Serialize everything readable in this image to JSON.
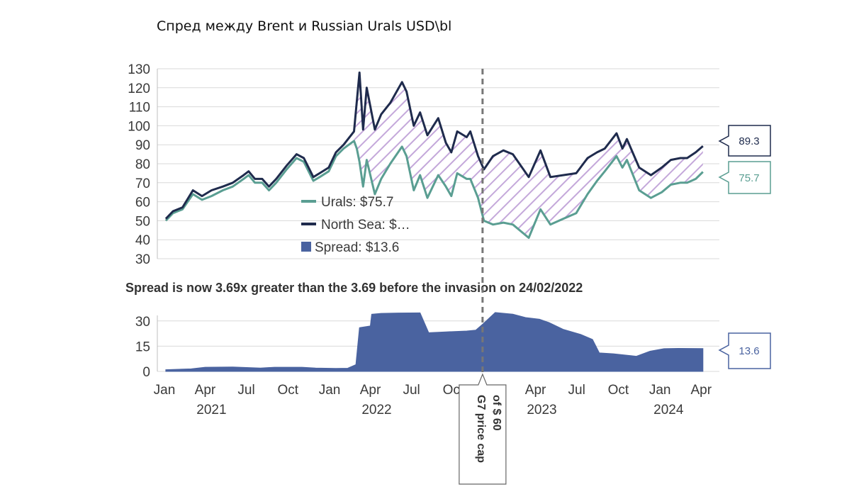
{
  "page": {
    "title": "Спред между Brent и Russian Urals USD\\bl"
  },
  "chart_data": [
    {
      "type": "line",
      "title": "",
      "xlabel": "",
      "ylabel": "",
      "ylim": [
        30,
        130
      ],
      "yticks": [
        130,
        120,
        110,
        100,
        90,
        80,
        70,
        60,
        50,
        40,
        30
      ],
      "x_range": [
        "2021-01-01",
        "2024-04-10"
      ],
      "grid": true,
      "x_tick_labels": [
        "Jan",
        "Apr",
        "Jul",
        "Oct",
        "Jan",
        "Apr",
        "Jul",
        "Oct",
        "Jan",
        "Apr",
        "Jul",
        "Oct",
        "Jan",
        "Apr"
      ],
      "year_labels": [
        "2021",
        "2022",
        "2023",
        "2024"
      ],
      "legend": {
        "position": "center-left",
        "entries": [
          "Urals: $75.7",
          "North Sea: $…",
          "Spread: $13.6"
        ]
      },
      "end_labels": {
        "north_sea": "89.3",
        "urals": "75.7"
      },
      "event_marker": {
        "date": "2022-12-05",
        "label_lines": [
          "G7 price cap",
          "of $ 60"
        ]
      },
      "colors": {
        "north_sea": "#1f2b4d",
        "urals": "#5a9e92",
        "hatch": "#b79bd0",
        "spread": "#4a63a0"
      },
      "series": [
        {
          "name": "North Sea",
          "points": [
            [
              "2021-01-04",
              51
            ],
            [
              "2021-01-20",
              55
            ],
            [
              "2021-02-10",
              57
            ],
            [
              "2021-03-05",
              66
            ],
            [
              "2021-03-25",
              63
            ],
            [
              "2021-04-15",
              66
            ],
            [
              "2021-05-10",
              68
            ],
            [
              "2021-06-01",
              70
            ],
            [
              "2021-06-25",
              74
            ],
            [
              "2021-07-06",
              76
            ],
            [
              "2021-07-20",
              72
            ],
            [
              "2021-08-05",
              72
            ],
            [
              "2021-08-20",
              68
            ],
            [
              "2021-09-05",
              72
            ],
            [
              "2021-09-28",
              79
            ],
            [
              "2021-10-20",
              85
            ],
            [
              "2021-11-05",
              83
            ],
            [
              "2021-11-26",
              73
            ],
            [
              "2021-12-10",
              75
            ],
            [
              "2021-12-30",
              78
            ],
            [
              "2022-01-15",
              86
            ],
            [
              "2022-02-01",
              90
            ],
            [
              "2022-02-24",
              97
            ],
            [
              "2022-03-08",
              128
            ],
            [
              "2022-03-16",
              98
            ],
            [
              "2022-03-24",
              120
            ],
            [
              "2022-04-11",
              98
            ],
            [
              "2022-04-25",
              106
            ],
            [
              "2022-05-15",
              112
            ],
            [
              "2022-06-10",
              123
            ],
            [
              "2022-06-20",
              118
            ],
            [
              "2022-07-06",
              100
            ],
            [
              "2022-07-20",
              107
            ],
            [
              "2022-08-05",
              95
            ],
            [
              "2022-08-29",
              104
            ],
            [
              "2022-09-15",
              91
            ],
            [
              "2022-09-27",
              86
            ],
            [
              "2022-10-10",
              97
            ],
            [
              "2022-10-31",
              94
            ],
            [
              "2022-11-08",
              97
            ],
            [
              "2022-11-25",
              84
            ],
            [
              "2022-12-08",
              77
            ],
            [
              "2022-12-28",
              84
            ],
            [
              "2023-01-20",
              87
            ],
            [
              "2023-02-10",
              85
            ],
            [
              "2023-03-17",
              73
            ],
            [
              "2023-04-12",
              87
            ],
            [
              "2023-05-04",
              73
            ],
            [
              "2023-06-01",
              74
            ],
            [
              "2023-06-30",
              75
            ],
            [
              "2023-07-25",
              83
            ],
            [
              "2023-08-15",
              86
            ],
            [
              "2023-09-01",
              88
            ],
            [
              "2023-09-27",
              96
            ],
            [
              "2023-10-10",
              88
            ],
            [
              "2023-10-20",
              93
            ],
            [
              "2023-11-16",
              78
            ],
            [
              "2023-12-12",
              74
            ],
            [
              "2024-01-05",
              78
            ],
            [
              "2024-01-25",
              82
            ],
            [
              "2024-02-15",
              83
            ],
            [
              "2024-03-01",
              83
            ],
            [
              "2024-03-20",
              86
            ],
            [
              "2024-04-05",
              89.3
            ]
          ]
        },
        {
          "name": "Urals",
          "points": [
            [
              "2021-01-04",
              50
            ],
            [
              "2021-01-20",
              54
            ],
            [
              "2021-02-10",
              56
            ],
            [
              "2021-03-05",
              64
            ],
            [
              "2021-03-25",
              61
            ],
            [
              "2021-04-15",
              63
            ],
            [
              "2021-05-10",
              66
            ],
            [
              "2021-06-01",
              68
            ],
            [
              "2021-06-25",
              72
            ],
            [
              "2021-07-06",
              74
            ],
            [
              "2021-07-20",
              70
            ],
            [
              "2021-08-05",
              70
            ],
            [
              "2021-08-20",
              66
            ],
            [
              "2021-09-05",
              70
            ],
            [
              "2021-09-28",
              77
            ],
            [
              "2021-10-20",
              83
            ],
            [
              "2021-11-05",
              81
            ],
            [
              "2021-11-26",
              71
            ],
            [
              "2021-12-10",
              73
            ],
            [
              "2021-12-30",
              76
            ],
            [
              "2022-01-15",
              84
            ],
            [
              "2022-02-01",
              88
            ],
            [
              "2022-02-24",
              92
            ],
            [
              "2022-03-02",
              88
            ],
            [
              "2022-03-08",
              81
            ],
            [
              "2022-03-16",
              68
            ],
            [
              "2022-03-24",
              82
            ],
            [
              "2022-04-11",
              64
            ],
            [
              "2022-04-25",
              72
            ],
            [
              "2022-05-15",
              80
            ],
            [
              "2022-06-10",
              89
            ],
            [
              "2022-06-20",
              84
            ],
            [
              "2022-07-06",
              66
            ],
            [
              "2022-07-20",
              74
            ],
            [
              "2022-08-05",
              62
            ],
            [
              "2022-08-29",
              74
            ],
            [
              "2022-09-15",
              68
            ],
            [
              "2022-09-27",
              63
            ],
            [
              "2022-10-10",
              75
            ],
            [
              "2022-10-31",
              72
            ],
            [
              "2022-11-08",
              72
            ],
            [
              "2022-11-25",
              62
            ],
            [
              "2022-12-08",
              50
            ],
            [
              "2022-12-28",
              48
            ],
            [
              "2023-01-20",
              49
            ],
            [
              "2023-02-10",
              48
            ],
            [
              "2023-03-17",
              41
            ],
            [
              "2023-04-12",
              56
            ],
            [
              "2023-05-04",
              48
            ],
            [
              "2023-06-01",
              51
            ],
            [
              "2023-06-30",
              54
            ],
            [
              "2023-07-25",
              64
            ],
            [
              "2023-08-15",
              71
            ],
            [
              "2023-09-01",
              76
            ],
            [
              "2023-09-27",
              84
            ],
            [
              "2023-10-10",
              78
            ],
            [
              "2023-10-20",
              82
            ],
            [
              "2023-11-16",
              66
            ],
            [
              "2023-12-12",
              62
            ],
            [
              "2024-01-05",
              65
            ],
            [
              "2024-01-25",
              69
            ],
            [
              "2024-02-15",
              70
            ],
            [
              "2024-03-01",
              70
            ],
            [
              "2024-03-20",
              72
            ],
            [
              "2024-04-05",
              75.7
            ]
          ]
        }
      ]
    },
    {
      "type": "area",
      "title": "Spread is now 3.69x greater than the 3.69 before the invasion on 24/02/2022",
      "xlabel": "",
      "ylabel": "",
      "ylim": [
        0,
        40
      ],
      "yticks": [
        30,
        15,
        0
      ],
      "grid": true,
      "end_label": "13.6",
      "series": [
        {
          "name": "Spread",
          "points": [
            [
              "2021-01-04",
              1
            ],
            [
              "2021-03-01",
              1.5
            ],
            [
              "2021-04-01",
              2.5
            ],
            [
              "2021-06-01",
              2.6
            ],
            [
              "2021-08-01",
              2
            ],
            [
              "2021-09-01",
              2.5
            ],
            [
              "2021-11-01",
              2.5
            ],
            [
              "2021-12-01",
              2
            ],
            [
              "2022-01-15",
              1.8
            ],
            [
              "2022-02-10",
              1.9
            ],
            [
              "2022-02-28",
              4
            ],
            [
              "2022-03-08",
              26
            ],
            [
              "2022-04-01",
              27
            ],
            [
              "2022-04-04",
              34
            ],
            [
              "2022-04-25",
              34.5
            ],
            [
              "2022-06-01",
              34.7
            ],
            [
              "2022-07-20",
              34.8
            ],
            [
              "2022-08-08",
              23
            ],
            [
              "2022-09-15",
              23.5
            ],
            [
              "2022-10-31",
              24
            ],
            [
              "2022-11-20",
              24.5
            ],
            [
              "2022-12-05",
              28
            ],
            [
              "2023-01-02",
              35
            ],
            [
              "2023-02-10",
              34
            ],
            [
              "2023-03-10",
              32
            ],
            [
              "2023-04-10",
              31
            ],
            [
              "2023-05-01",
              29
            ],
            [
              "2023-06-01",
              25
            ],
            [
              "2023-07-10",
              22
            ],
            [
              "2023-08-05",
              19
            ],
            [
              "2023-08-20",
              11
            ],
            [
              "2023-09-20",
              10.5
            ],
            [
              "2023-11-10",
              9
            ],
            [
              "2023-12-10",
              12
            ],
            [
              "2024-01-10",
              13.5
            ],
            [
              "2024-02-10",
              13.7
            ],
            [
              "2024-04-05",
              13.6
            ]
          ]
        }
      ]
    }
  ]
}
